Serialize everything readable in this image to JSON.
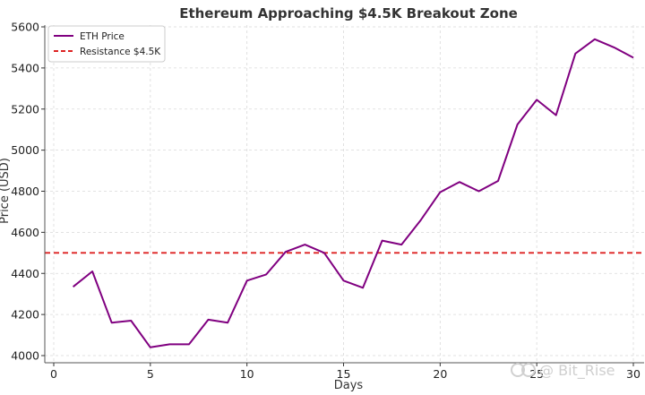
{
  "chart_data": {
    "type": "line",
    "title": "Ethereum Approaching $4.5K Breakout Zone",
    "xlabel": "Days",
    "ylabel": "Price (USD)",
    "xlim": [
      0,
      30
    ],
    "ylim": [
      4000,
      5600
    ],
    "x_ticks": [
      "0",
      "5",
      "10",
      "15",
      "20",
      "25",
      "30"
    ],
    "y_ticks": [
      "4000",
      "4200",
      "4400",
      "4600",
      "4800",
      "5000",
      "5200",
      "5400",
      "5600"
    ],
    "grid": true,
    "legend_position": "top-left",
    "series": [
      {
        "name": "ETH Price",
        "color": "#800080",
        "style": "solid",
        "x": [
          1,
          2,
          3,
          4,
          5,
          6,
          7,
          8,
          9,
          10,
          11,
          12,
          13,
          14,
          15,
          16,
          17,
          18,
          19,
          20,
          21,
          22,
          23,
          24,
          25,
          26,
          27,
          28,
          29,
          30
        ],
        "y": [
          4335,
          4410,
          4160,
          4170,
          4040,
          4055,
          4055,
          4175,
          4160,
          4365,
          4395,
          4505,
          4540,
          4500,
          4365,
          4330,
          4560,
          4540,
          4660,
          4795,
          4845,
          4800,
          4850,
          5125,
          5245,
          5170,
          5470,
          5540,
          5500,
          5450
        ]
      },
      {
        "name": "Resistance $4.5K",
        "color": "#dd2222",
        "style": "dashed",
        "value": 4500
      }
    ]
  },
  "watermark": {
    "icon": "bitrise-logo",
    "text": "@ Bit_Rise"
  }
}
